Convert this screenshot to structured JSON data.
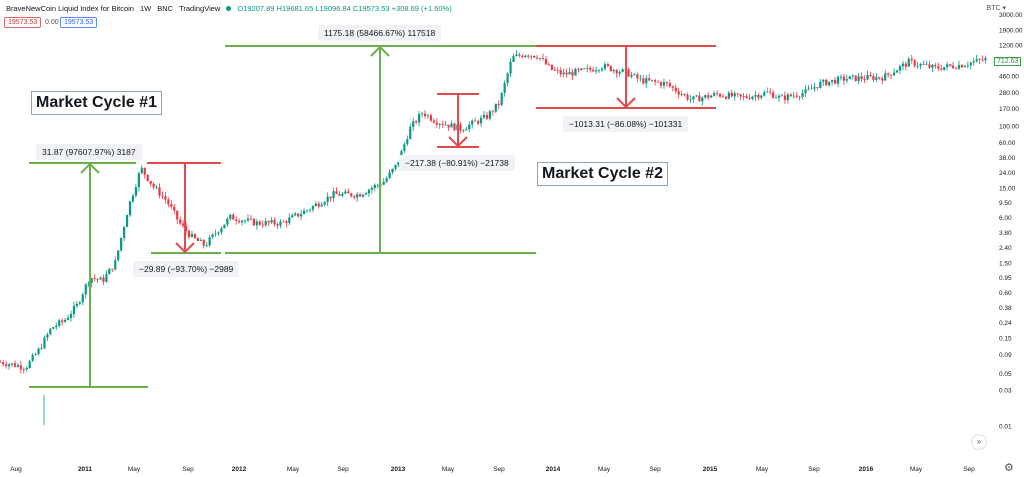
{
  "header": {
    "title": "BraveNewCoin Liquid Index for Bitcoin",
    "interval": "1W",
    "exchange": "BNC",
    "source": "TradingView",
    "ohlc": "O19207.89  H19681.65  L19096.84  C19573.53  +308.69 (+1.60%)",
    "price_red": "19573.53",
    "zero_value": "0.00",
    "price_blue": "19573.53",
    "currency": "BTC"
  },
  "last_price": "712.63",
  "chart_data": {
    "type": "candlestick",
    "x_ticks": [
      "Aug",
      "2011",
      "May",
      "Sep",
      "2012",
      "May",
      "Sep",
      "2013",
      "May",
      "Sep",
      "2014",
      "May",
      "Sep",
      "2015",
      "May",
      "Sep",
      "2016",
      "May",
      "Sep"
    ],
    "y_scale": "log",
    "y_ticks": [
      "3000.00",
      "1900.00",
      "1200.00",
      "720.00",
      "460.00",
      "280.00",
      "170.00",
      "100.00",
      "60.00",
      "38.00",
      "24.00",
      "15.00",
      "9.50",
      "6.00",
      "3.80",
      "2.40",
      "1.50",
      "0.95",
      "0.60",
      "0.38",
      "0.24",
      "0.15",
      "0.09",
      "0.05",
      "0.03",
      "0.01"
    ],
    "price_path": [
      [
        "2010-07",
        0.07
      ],
      [
        "2010-09",
        0.06
      ],
      [
        "2010-10",
        0.1
      ],
      [
        "2010-11",
        0.2
      ],
      [
        "2010-12",
        0.25
      ],
      [
        "2011-01",
        0.4
      ],
      [
        "2011-02",
        0.95
      ],
      [
        "2011-03",
        0.85
      ],
      [
        "2011-04",
        1.5
      ],
      [
        "2011-05",
        8
      ],
      [
        "2011-06",
        27
      ],
      [
        "2011-07",
        15
      ],
      [
        "2011-08",
        10
      ],
      [
        "2011-09",
        5
      ],
      [
        "2011-10",
        3.2
      ],
      [
        "2011-11",
        2.5
      ],
      [
        "2011-12",
        4
      ],
      [
        "2012-01",
        6
      ],
      [
        "2012-03",
        5
      ],
      [
        "2012-05",
        5
      ],
      [
        "2012-07",
        7.5
      ],
      [
        "2012-09",
        12
      ],
      [
        "2012-11",
        12
      ],
      [
        "2013-01",
        18
      ],
      [
        "2013-02",
        30
      ],
      [
        "2013-03",
        90
      ],
      [
        "2013-04",
        150
      ],
      [
        "2013-05",
        115
      ],
      [
        "2013-07",
        90
      ],
      [
        "2013-09",
        130
      ],
      [
        "2013-10",
        200
      ],
      [
        "2013-11",
        800
      ],
      [
        "2013-12",
        900
      ],
      [
        "2014-01",
        850
      ],
      [
        "2014-02",
        560
      ],
      [
        "2014-03",
        480
      ],
      [
        "2014-05",
        550
      ],
      [
        "2014-06",
        620
      ],
      [
        "2014-08",
        500
      ],
      [
        "2014-09",
        400
      ],
      [
        "2014-11",
        360
      ],
      [
        "2015-01",
        220
      ],
      [
        "2015-03",
        260
      ],
      [
        "2015-05",
        235
      ],
      [
        "2015-07",
        275
      ],
      [
        "2015-08",
        230
      ],
      [
        "2015-10",
        280
      ],
      [
        "2015-11",
        360
      ],
      [
        "2016-01",
        420
      ],
      [
        "2016-04",
        440
      ],
      [
        "2016-06",
        700
      ],
      [
        "2016-08",
        580
      ],
      [
        "2016-10",
        640
      ],
      [
        "2016-12",
        760
      ]
    ]
  },
  "annotations": {
    "cycle1": "Market Cycle #1",
    "cycle2": "Market Cycle #2",
    "rise1": "31.87 (97607.97%) 3187",
    "fall1": "−29.89 (−93.70%) −2989",
    "rise2": "1175.18 (58466.67%) 117518",
    "fall_mid": "−217.38 (−80.91%) −21738",
    "fall2": "−1013.31 (−86.08%) −101331"
  },
  "colors": {
    "up": "#089981",
    "down": "#f23645",
    "green_line": "#6ab04c",
    "red_line": "#e24a4a",
    "axis_text": "#131722"
  }
}
